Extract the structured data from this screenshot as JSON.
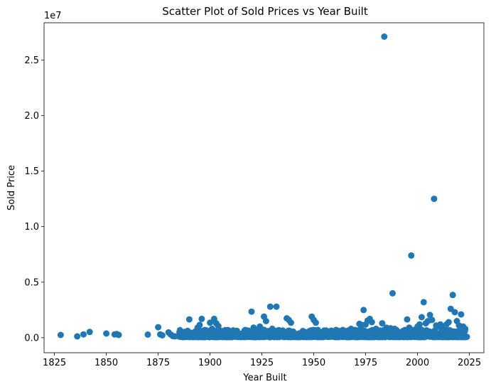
{
  "chart_data": {
    "type": "scatter",
    "title": "Scatter Plot of Sold Prices vs Year Built",
    "xlabel": "Year Built",
    "ylabel": "Sold Price",
    "offset_label": "1e7",
    "xlim": [
      1820,
      2032
    ],
    "ylim": [
      -1350000,
      28350000
    ],
    "xticks": [
      1825,
      1850,
      1875,
      1900,
      1925,
      1950,
      1975,
      2000,
      2025
    ],
    "yticks": [
      0,
      5000000,
      10000000,
      15000000,
      20000000,
      25000000
    ],
    "ytick_labels": [
      "0.0",
      "0.5",
      "1.0",
      "1.5",
      "2.0",
      "2.5"
    ],
    "grid": false,
    "point_color": "#1f77b4",
    "points": [
      [
        1828,
        250000
      ],
      [
        1836,
        120000
      ],
      [
        1839,
        300000
      ],
      [
        1842,
        520000
      ],
      [
        1850,
        380000
      ],
      [
        1854,
        300000
      ],
      [
        1855,
        330000
      ],
      [
        1856,
        250000
      ],
      [
        1870,
        280000
      ],
      [
        1875,
        950000
      ],
      [
        1876,
        300000
      ],
      [
        1877,
        220000
      ],
      [
        1880,
        480000
      ],
      [
        1881,
        300000
      ],
      [
        1882,
        160000
      ],
      [
        1883,
        120000
      ],
      [
        1886,
        200000
      ],
      [
        1888,
        350000
      ],
      [
        1889,
        250000
      ],
      [
        1890,
        1650000
      ],
      [
        1891,
        400000
      ],
      [
        1893,
        300000
      ],
      [
        1894,
        900000
      ],
      [
        1895,
        1150000
      ],
      [
        1896,
        1700000
      ],
      [
        1897,
        500000
      ],
      [
        1899,
        350000
      ],
      [
        1900,
        1350000
      ],
      [
        1901,
        800000
      ],
      [
        1902,
        1700000
      ],
      [
        1903,
        1300000
      ],
      [
        1904,
        1050000
      ],
      [
        1905,
        600000
      ],
      [
        1906,
        400000
      ],
      [
        1908,
        300000
      ],
      [
        1910,
        250000
      ],
      [
        1912,
        450000
      ],
      [
        1915,
        350000
      ],
      [
        1917,
        700000
      ],
      [
        1918,
        550000
      ],
      [
        1920,
        2350000
      ],
      [
        1921,
        900000
      ],
      [
        1922,
        700000
      ],
      [
        1924,
        1000000
      ],
      [
        1925,
        600000
      ],
      [
        1926,
        1900000
      ],
      [
        1927,
        1500000
      ],
      [
        1929,
        2800000
      ],
      [
        1930,
        800000
      ],
      [
        1932,
        2800000
      ],
      [
        1934,
        600000
      ],
      [
        1936,
        400000
      ],
      [
        1937,
        1750000
      ],
      [
        1938,
        1600000
      ],
      [
        1939,
        1350000
      ],
      [
        1940,
        500000
      ],
      [
        1942,
        300000
      ],
      [
        1944,
        450000
      ],
      [
        1946,
        300000
      ],
      [
        1948,
        600000
      ],
      [
        1949,
        1900000
      ],
      [
        1950,
        1600000
      ],
      [
        1951,
        1350000
      ],
      [
        1952,
        700000
      ],
      [
        1954,
        500000
      ],
      [
        1956,
        650000
      ],
      [
        1958,
        450000
      ],
      [
        1960,
        400000
      ],
      [
        1962,
        550000
      ],
      [
        1964,
        700000
      ],
      [
        1966,
        600000
      ],
      [
        1968,
        800000
      ],
      [
        1970,
        700000
      ],
      [
        1972,
        1250000
      ],
      [
        1973,
        1150000
      ],
      [
        1974,
        2500000
      ],
      [
        1975,
        1200000
      ],
      [
        1976,
        1550000
      ],
      [
        1977,
        1700000
      ],
      [
        1978,
        1400000
      ],
      [
        1980,
        800000
      ],
      [
        1982,
        650000
      ],
      [
        1983,
        1300000
      ],
      [
        1984,
        27100000
      ],
      [
        1985,
        900000
      ],
      [
        1986,
        700000
      ],
      [
        1987,
        850000
      ],
      [
        1988,
        4000000
      ],
      [
        1989,
        800000
      ],
      [
        1990,
        600000
      ],
      [
        1992,
        500000
      ],
      [
        1994,
        700000
      ],
      [
        1995,
        1650000
      ],
      [
        1996,
        900000
      ],
      [
        1997,
        7400000
      ],
      [
        1998,
        700000
      ],
      [
        2000,
        1000000
      ],
      [
        2001,
        1200000
      ],
      [
        2002,
        1850000
      ],
      [
        2003,
        3200000
      ],
      [
        2004,
        1300000
      ],
      [
        2005,
        1500000
      ],
      [
        2006,
        2050000
      ],
      [
        2007,
        1600000
      ],
      [
        2008,
        12500000
      ],
      [
        2009,
        1100000
      ],
      [
        2010,
        1000000
      ],
      [
        2011,
        1200000
      ],
      [
        2012,
        900000
      ],
      [
        2013,
        1000000
      ],
      [
        2014,
        1200000
      ],
      [
        2015,
        1400000
      ],
      [
        2016,
        2600000
      ],
      [
        2017,
        3850000
      ],
      [
        2018,
        2300000
      ],
      [
        2019,
        1500000
      ],
      [
        2020,
        1100000
      ],
      [
        2021,
        2100000
      ],
      [
        2022,
        1000000
      ],
      [
        2023,
        800000
      ]
    ]
  }
}
